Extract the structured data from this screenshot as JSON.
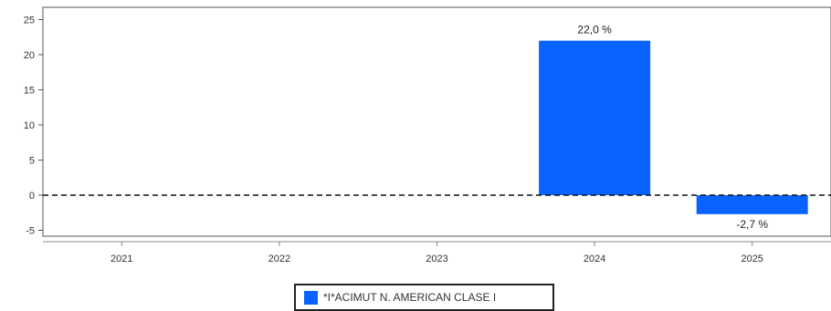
{
  "chart_data": {
    "type": "bar",
    "categories": [
      "2021",
      "2022",
      "2023",
      "2024",
      "2025"
    ],
    "series": [
      {
        "name": "*I*ACIMUT N. AMERICAN CLASE I",
        "values": [
          null,
          null,
          null,
          22.0,
          -2.7
        ],
        "data_labels": [
          "",
          "",
          "",
          "22,0 %",
          "-2,7 %"
        ],
        "color": "#0a63ff"
      }
    ],
    "ylim": [
      -6,
      27
    ],
    "yticks": [
      -5,
      0,
      5,
      10,
      15,
      20,
      25
    ],
    "ytick_labels": [
      "-5",
      "0",
      "5",
      "10",
      "15",
      "20",
      "25"
    ],
    "zero_line": "dashed",
    "grid": false,
    "legend_position": "bottom"
  }
}
